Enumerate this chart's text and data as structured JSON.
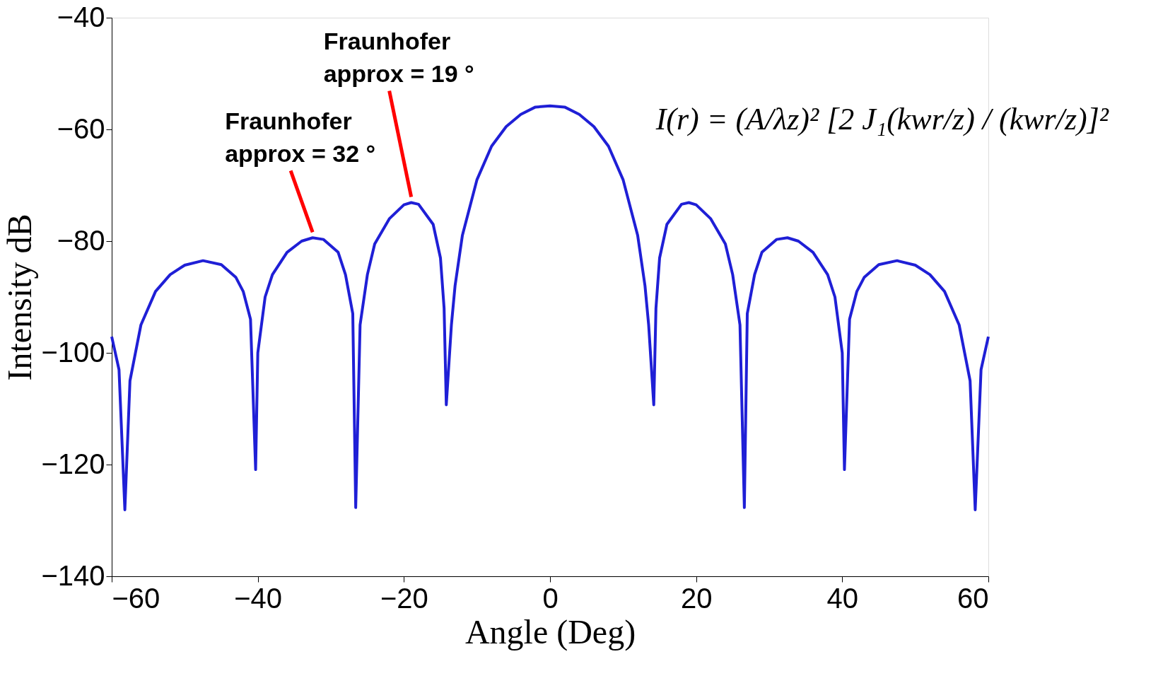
{
  "chart_data": {
    "type": "line",
    "xlabel": "Angle (Deg)",
    "ylabel": "Intensity dB",
    "x": [
      -60,
      -59,
      -58.2,
      -57.5,
      -56,
      -54,
      -52,
      -50,
      -47.5,
      -45,
      -43,
      -42,
      -41,
      -40.3,
      -40,
      -39,
      -38,
      -36,
      -34,
      -32.5,
      -31,
      -29,
      -28,
      -27,
      -26.6,
      -26,
      -25,
      -24,
      -22,
      -20,
      -19,
      -18,
      -16,
      -15,
      -14.5,
      -14.2,
      -13.5,
      -13,
      -12,
      -10,
      -8,
      -6,
      -4,
      -2,
      0,
      2,
      4,
      6,
      8,
      10,
      12,
      13,
      13.5,
      14.2,
      14.5,
      15,
      16,
      18,
      19,
      20,
      22,
      24,
      25,
      26,
      26.6,
      27,
      28,
      29,
      31,
      32.5,
      34,
      36,
      38,
      39,
      40,
      40.3,
      41,
      42,
      43,
      45,
      47.5,
      50,
      52,
      54,
      56,
      57.5,
      58.2,
      59,
      60
    ],
    "series": [
      {
        "color": "#1f1fd6",
        "values": [
          -97.1,
          -103,
          -128.1,
          -105,
          -95,
          -89,
          -86,
          -84.3,
          -83.5,
          -84.2,
          -86.5,
          -89,
          -94,
          -120.9,
          -100,
          -90,
          -86,
          -82,
          -80,
          -79.4,
          -79.7,
          -82,
          -86,
          -93,
          -127.7,
          -95,
          -86,
          -80.5,
          -76,
          -73.5,
          -73.1,
          -73.4,
          -77,
          -83,
          -92,
          -109.3,
          -95,
          -88,
          -79,
          -69,
          -63,
          -59.5,
          -57.3,
          -56,
          -55.8,
          -56,
          -57.3,
          -59.5,
          -63,
          -69,
          -79,
          -88,
          -95,
          -109.3,
          -92,
          -83,
          -77,
          -73.4,
          -73.1,
          -73.5,
          -76,
          -80.5,
          -86,
          -95,
          -127.7,
          -93,
          -86,
          -82,
          -79.7,
          -79.4,
          -80,
          -82,
          -86,
          -90,
          -100,
          -120.9,
          -94,
          -89,
          -86.5,
          -84.2,
          -83.5,
          -84.3,
          -86,
          -89,
          -95,
          -105,
          -128.1,
          -103,
          -97.1
        ]
      }
    ],
    "xlim": [
      -60,
      60
    ],
    "xticks": [
      -60,
      -40,
      -20,
      0,
      20,
      40,
      60
    ],
    "ylim": [
      -140,
      -40
    ],
    "yticks": [
      -140,
      -120,
      -100,
      -80,
      -60,
      -40
    ],
    "grid": false,
    "marker": "none",
    "line_style": "solid",
    "annotations": [
      {
        "text": "Fraunhofer\napprox = 32 °",
        "x": -32.5,
        "y": -79.4
      },
      {
        "text": "Fraunhofer\napprox = 19 °",
        "x": -19,
        "y": -73.1
      },
      "I(r) = (A/λz)² [2 J₁(kwr/z) / (kwr/z)]²"
    ]
  }
}
